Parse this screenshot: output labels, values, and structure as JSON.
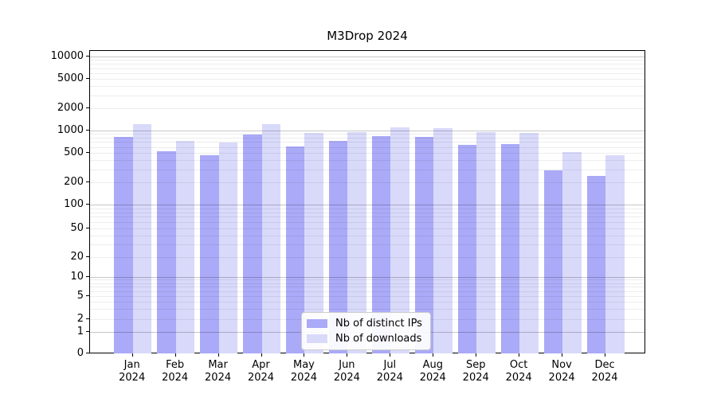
{
  "chart_data": {
    "type": "bar",
    "title": "M3Drop 2024",
    "xlabel": "",
    "ylabel": "",
    "x_tick_second_line": "2024",
    "categories": [
      "Jan",
      "Feb",
      "Mar",
      "Apr",
      "May",
      "Jun",
      "Jul",
      "Aug",
      "Sep",
      "Oct",
      "Nov",
      "Dec"
    ],
    "series": [
      {
        "name": "Nb of distinct IPs",
        "color": "#aaaaf8",
        "values": [
          815,
          525,
          465,
          870,
          605,
          730,
          835,
          815,
          645,
          655,
          290,
          245
        ]
      },
      {
        "name": "Nb of downloads",
        "color": "#d9d9fa",
        "values": [
          1210,
          715,
          690,
          1220,
          920,
          955,
          1090,
          1070,
          940,
          930,
          510,
          470
        ]
      }
    ],
    "yticks": [
      "0",
      "1",
      "2",
      "5",
      "10",
      "20",
      "50",
      "100",
      "200",
      "500",
      "1000",
      "2000",
      "5000",
      "10000"
    ],
    "ylim": [
      0,
      10000
    ],
    "scale": "log (with 0 baseline)",
    "grid": "horizontal, major decades darker + log minors lighter, drawn over bars",
    "legend_position": "lower center, inside plot",
    "colors": {
      "bar_distinct_ips": "#aaaaf8",
      "bar_downloads": "#d9d9fa",
      "axis": "#000000",
      "background": "#ffffff"
    }
  }
}
